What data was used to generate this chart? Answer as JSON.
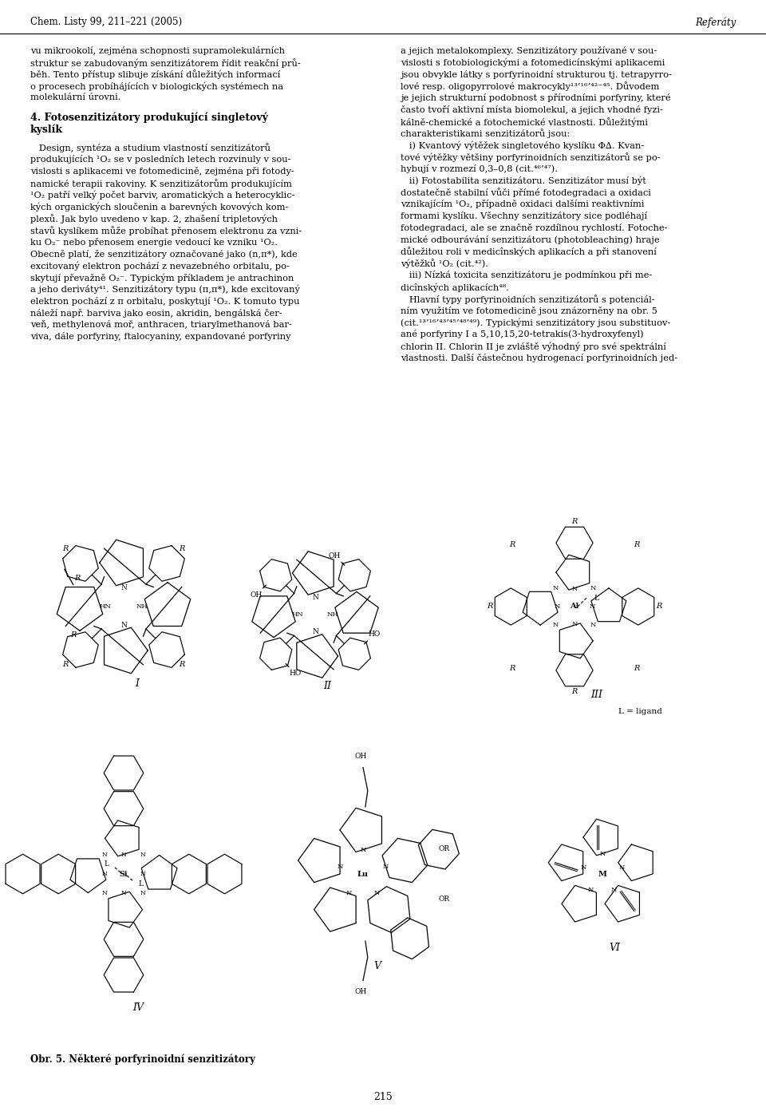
{
  "header_left": "Chem. Listy 99, 211–221 (2005)",
  "header_right": "Referáty",
  "footer_center": "215",
  "bg_color": "#ffffff",
  "col1_lines": [
    [
      "normal",
      "vu mikrookolí, zejména schopnosti supramolekulárních"
    ],
    [
      "normal",
      "struktur se zabudovaným senzitizátorem řídit reakční prů-"
    ],
    [
      "normal",
      "běh. Tento přístup slibuje získání důležitých informací"
    ],
    [
      "normal",
      "o procesech probíhájících v biologických systémech na"
    ],
    [
      "normal",
      "molekulární úrovni."
    ],
    [
      "blank",
      ""
    ],
    [
      "bold",
      "4. Fotosenzitizátory produkující singletový"
    ],
    [
      "bold_indent",
      "kyslík"
    ],
    [
      "blank",
      ""
    ],
    [
      "normal",
      "   Design, syntéza a studium vlastností senzitizátorů"
    ],
    [
      "normal",
      "produkujících ¹O₂ se v posledních letech rozvinuly v sou-"
    ],
    [
      "normal",
      "vislosti s aplikacemi ve fotomedicině, zejména při fotody-"
    ],
    [
      "normal",
      "namické terapii rakoviny. K senzitizátorům produkujícím"
    ],
    [
      "normal",
      "¹O₂ patří velký počet barviv, aromatických a heterocyklic-"
    ],
    [
      "normal",
      "kých organických sloučenin a barevných kovových kom-"
    ],
    [
      "normal",
      "plexů. Jak bylo uvedeno v kap. 2, zhašení tripletových"
    ],
    [
      "normal",
      "stavů kyslíkem může probíhat přenosem elektronu za vzni-"
    ],
    [
      "normal",
      "ku O₂⁻ nebo přenosem energie vedoucí ke vzniku ¹O₂."
    ],
    [
      "normal",
      "Obecně platí, že senzitizátory označované jako (n,π*), kde"
    ],
    [
      "normal",
      "excitovaný elektron pochází z nevazebného orbitalu, po-"
    ],
    [
      "normal",
      "skytují převažně O₂⁻. Typickým příkladem je antrachinon"
    ],
    [
      "normal",
      "a jeho deriváty⁴¹. Senzitizátory typu (π,π*), kde excitovaný"
    ],
    [
      "normal",
      "elektron pochází z π orbitalu, poskytují ¹O₂. K tomuto typu"
    ],
    [
      "normal",
      "náleží např. barviva jako eosin, akridin, bengálská čer-"
    ],
    [
      "normal",
      "veň, methylenová moř, anthracen, triarylmethanová bar-"
    ],
    [
      "normal",
      "viva, dále porfyriny, ftalocyaniny, expandované porfyriny"
    ]
  ],
  "col2_lines": [
    [
      "normal",
      "a jejich metalokomplexy. Senzitizátory používané v sou-"
    ],
    [
      "normal",
      "vislosti s fotobiologickými a fotomedicínskými aplikacemi"
    ],
    [
      "normal",
      "jsou obvykle látky s porfyrinoidní strukturou tj. tetrapyrro-"
    ],
    [
      "normal",
      "lové resp. oligopyrrolové makrocykly¹³’¹⁶’⁴²⁻⁴⁵. Důvodem"
    ],
    [
      "normal",
      "je jejich strukturní podobnost s přírodními porfyriny, které"
    ],
    [
      "normal",
      "často tvoří aktivní místa biomolekul, a jejich vhodné fyzi-"
    ],
    [
      "normal",
      "kálně-chemické a fotochemické vlastnosti. Důležitými"
    ],
    [
      "normal",
      "charakteristikami senzitizátorů jsou:"
    ],
    [
      "italic_indent",
      "   i) Kvantový výtěžek singletového kyslíku Φ∆. Kvan-"
    ],
    [
      "normal",
      "tové výtěžky většiny porfyrinoidních senzitizátorů se po-"
    ],
    [
      "normal",
      "hybují v rozmezí 0,3–0,8 (cit.⁴⁶’⁴⁷)."
    ],
    [
      "italic_indent",
      "   ii) Fotostabilita senzitizátoru. Senzitizátor musí být"
    ],
    [
      "normal",
      "dostatečně stabilní vůči přímé fotodegradaci a oxidaci"
    ],
    [
      "normal",
      "vznikajícím ¹O₂, případně oxidaci dalšími reaktivními"
    ],
    [
      "normal",
      "formami kyslíku. Všechny senzitizátory sice podléhají"
    ],
    [
      "normal",
      "fotodegradaci, ale se značně rozdílnou rychlostí. Fotoche-"
    ],
    [
      "normal",
      "mické odbourávání senzitizátoru (photobleaching) hraje"
    ],
    [
      "normal",
      "důležitou roli v medicînských aplikacích a při stanovení"
    ],
    [
      "normal",
      "výtěžků ¹O₂ (cit.⁴²)."
    ],
    [
      "italic_indent",
      "   iii) Nízká toxicita senzitizátoru je podmínkou při me-"
    ],
    [
      "normal",
      "dicînských aplikacích⁴⁸."
    ],
    [
      "normal",
      "   Hlavní typy porfyrinoidních senzitizátorů s potenciál-"
    ],
    [
      "normal",
      "ním využitím ve fotomedicině jsou znázorněny na obr. 5"
    ],
    [
      "normal",
      "(cit.¹³’¹⁶’⁴³’⁴⁵’⁴⁸’⁴⁹). Typickými senzitizátory jsou substituov-"
    ],
    [
      "normal",
      "ané porfyriny I a 5,10,15,20-tetrakis(3-hydroxyfenyl)"
    ],
    [
      "normal",
      "chlorin II. Chlorin II je zvláště výhodný pro své spektrální"
    ],
    [
      "normal",
      "vlastnosti. Další částečnou hydrogenací porfyrinoidních jed-"
    ]
  ],
  "caption": "Obr. 5. Některé porfyrinoidní senzitizátory"
}
